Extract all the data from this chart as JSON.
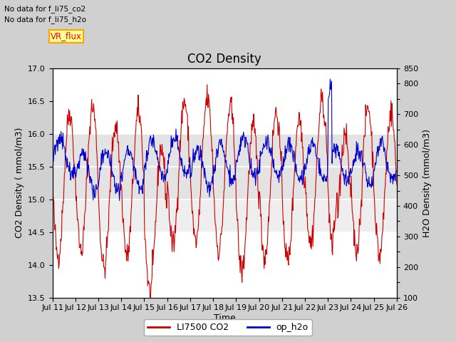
{
  "title": "CO2 Density",
  "xlabel": "Time",
  "ylabel_left": "CO2 Density ( mmol/m3)",
  "ylabel_right": "H2O Density (mmol/m3)",
  "ylim_left": [
    13.5,
    17.0
  ],
  "ylim_right": [
    100,
    850
  ],
  "x_tick_labels": [
    "Jul 11",
    "Jul 12",
    "Jul 13",
    "Jul 14",
    "Jul 15",
    "Jul 16",
    "Jul 17",
    "Jul 18",
    "Jul 19",
    "Jul 20",
    "Jul 21",
    "Jul 22",
    "Jul 23",
    "Jul 24",
    "Jul 25",
    "Jul 26"
  ],
  "annotation_lines": [
    "No data for f_li75_co2",
    "No data for f_li75_h2o"
  ],
  "legend_label_left": "LI7500 CO2",
  "legend_label_right": "op_h2o",
  "vr_flux_label": "VR_flux",
  "fig_bg_color": "#d0d0d0",
  "plot_bg_color": "#ffffff",
  "co2_color": "#cc0000",
  "h2o_color": "#0000cc",
  "title_fontsize": 12,
  "label_fontsize": 9,
  "tick_fontsize": 8,
  "gray_band1": [
    15.0,
    16.0
  ],
  "gray_band2": [
    14.5,
    15.0
  ]
}
